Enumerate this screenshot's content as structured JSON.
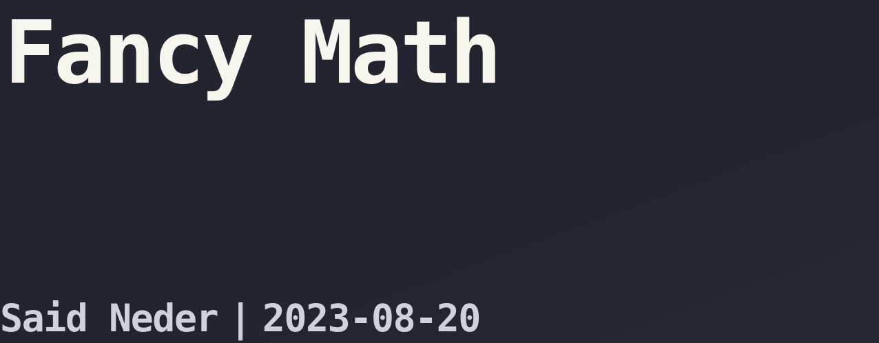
{
  "slide": {
    "title": "Fancy Math",
    "author": "Said Neder",
    "separator": "|",
    "date": "2023-08-20"
  },
  "colors": {
    "background": "#22242f",
    "title": "#f6f6ee",
    "byline": "#cdd2dc"
  }
}
